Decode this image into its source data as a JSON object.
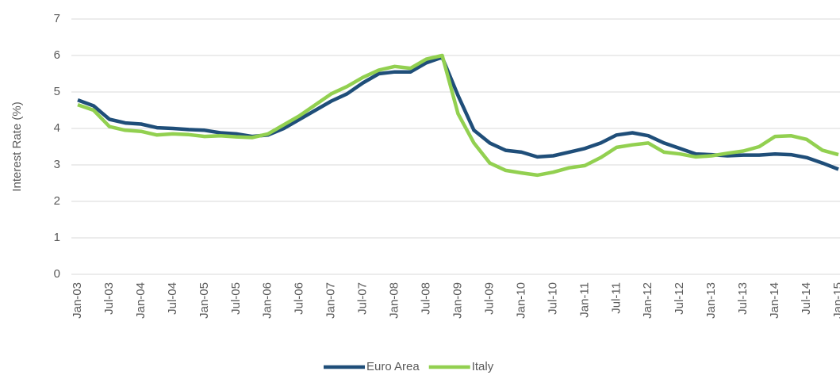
{
  "chart_data": {
    "type": "line",
    "y_label": "Interest Rate (%)",
    "categories": [
      "Jan-03",
      null,
      "Jul-03",
      null,
      "Jan-04",
      null,
      "Jul-04",
      null,
      "Jan-05",
      null,
      "Jul-05",
      null,
      "Jan-06",
      null,
      "Jul-06",
      null,
      "Jan-07",
      null,
      "Jul-07",
      null,
      "Jan-08",
      null,
      "Jul-08",
      null,
      "Jan-09",
      null,
      "Jul-09",
      null,
      "Jan-10",
      null,
      "Jul-10",
      null,
      "Jan-11",
      null,
      "Jul-11",
      null,
      "Jan-12",
      null,
      "Jul-12",
      null,
      "Jan-13",
      null,
      "Jul-13",
      null,
      "Jan-14",
      null,
      "Jul-14",
      null,
      "Jan-15"
    ],
    "series": [
      {
        "name": "Euro Area",
        "color": "#1f4e79",
        "values": [
          4.78,
          4.62,
          4.25,
          4.15,
          4.12,
          4.02,
          4.0,
          3.97,
          3.95,
          3.88,
          3.85,
          3.78,
          3.82,
          4.0,
          4.25,
          4.5,
          4.75,
          4.95,
          5.25,
          5.5,
          5.55,
          5.55,
          5.8,
          5.95,
          4.9,
          3.95,
          3.6,
          3.4,
          3.35,
          3.22,
          3.25,
          3.35,
          3.45,
          3.6,
          3.82,
          3.88,
          3.8,
          3.6,
          3.45,
          3.3,
          3.28,
          3.25,
          3.27,
          3.27,
          3.3,
          3.28,
          3.2,
          3.05,
          2.88
        ]
      },
      {
        "name": "Italy",
        "color": "#92d050",
        "values": [
          4.65,
          4.5,
          4.05,
          3.95,
          3.92,
          3.82,
          3.85,
          3.83,
          3.78,
          3.8,
          3.77,
          3.75,
          3.85,
          4.1,
          4.35,
          4.65,
          4.95,
          5.15,
          5.4,
          5.6,
          5.7,
          5.65,
          5.9,
          6.0,
          4.4,
          3.6,
          3.05,
          2.85,
          2.78,
          2.72,
          2.8,
          2.92,
          2.98,
          3.2,
          3.48,
          3.55,
          3.6,
          3.35,
          3.3,
          3.22,
          3.25,
          3.32,
          3.38,
          3.5,
          3.78,
          3.8,
          3.7,
          3.4,
          3.28
        ]
      }
    ],
    "ylim": [
      0,
      7
    ],
    "yticks": [
      0,
      1,
      2,
      3,
      4,
      5,
      6,
      7
    ],
    "grid": true,
    "legend": "bottom"
  }
}
